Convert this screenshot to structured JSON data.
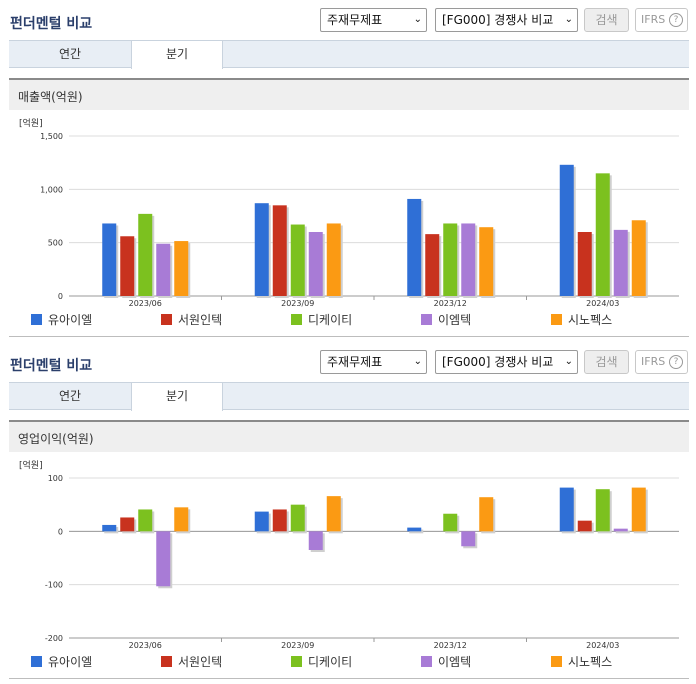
{
  "sections": [
    {
      "title": "펀더멘털 비교",
      "select_statement": "주재무제표",
      "select_compare": "[FG000] 경쟁사 비교",
      "search_button": "검색",
      "ifrs_label": "IFRS",
      "help_glyph": "?",
      "arrow_glyph": "⌄",
      "tabs": [
        {
          "label": "연간"
        },
        {
          "label": "분기"
        }
      ],
      "active_tab": "분기",
      "subtitle": "매출액(억원)"
    },
    {
      "title": "펀더멘털 비교",
      "select_statement": "주재무제표",
      "select_compare": "[FG000] 경쟁사 비교",
      "search_button": "검색",
      "ifrs_label": "IFRS",
      "help_glyph": "?",
      "arrow_glyph": "⌄",
      "tabs": [
        {
          "label": "연간"
        },
        {
          "label": "분기"
        }
      ],
      "active_tab": "분기",
      "subtitle": "영업이익(억원)"
    }
  ],
  "colors": {
    "유아이엘": "#2f6fd6",
    "서원인텍": "#c8321e",
    "디케이티": "#7cc11f",
    "이엠텍": "#a87bd6",
    "시노펙스": "#fb9a13"
  },
  "chart_data": [
    {
      "type": "bar",
      "title": "매출액(억원)",
      "unit": "[억원]",
      "categories": [
        "2023/06",
        "2023/09",
        "2023/12",
        "2024/03"
      ],
      "series": [
        {
          "name": "유아이엘",
          "values": [
            680,
            870,
            910,
            1230
          ]
        },
        {
          "name": "서원인텍",
          "values": [
            560,
            850,
            580,
            600
          ]
        },
        {
          "name": "디케이티",
          "values": [
            770,
            670,
            680,
            1150
          ]
        },
        {
          "name": "이엠텍",
          "values": [
            490,
            600,
            680,
            620
          ]
        },
        {
          "name": "시노펙스",
          "values": [
            515,
            680,
            645,
            710
          ]
        }
      ],
      "ylim": [
        0,
        1500
      ],
      "yticks": [
        0,
        500,
        1000,
        1500
      ],
      "ytick_labels": [
        "0",
        "500",
        "1,000",
        "1,500"
      ],
      "legend": "bottom",
      "grid": true
    },
    {
      "type": "bar",
      "title": "영업이익(억원)",
      "unit": "[억원]",
      "categories": [
        "2023/06",
        "2023/09",
        "2023/12",
        "2024/03"
      ],
      "series": [
        {
          "name": "유아이엘",
          "values": [
            12,
            37,
            7,
            82
          ]
        },
        {
          "name": "서원인텍",
          "values": [
            26,
            41,
            0,
            20
          ]
        },
        {
          "name": "디케이티",
          "values": [
            41,
            50,
            33,
            79
          ]
        },
        {
          "name": "이엠텍",
          "values": [
            -103,
            -35,
            -28,
            5
          ]
        },
        {
          "name": "시노펙스",
          "values": [
            45,
            66,
            64,
            82
          ]
        }
      ],
      "ylim": [
        -200,
        100
      ],
      "yticks": [
        -200,
        -100,
        0,
        100
      ],
      "ytick_labels": [
        "-200",
        "-100",
        "0",
        "100"
      ],
      "legend": "bottom",
      "grid": true
    }
  ]
}
